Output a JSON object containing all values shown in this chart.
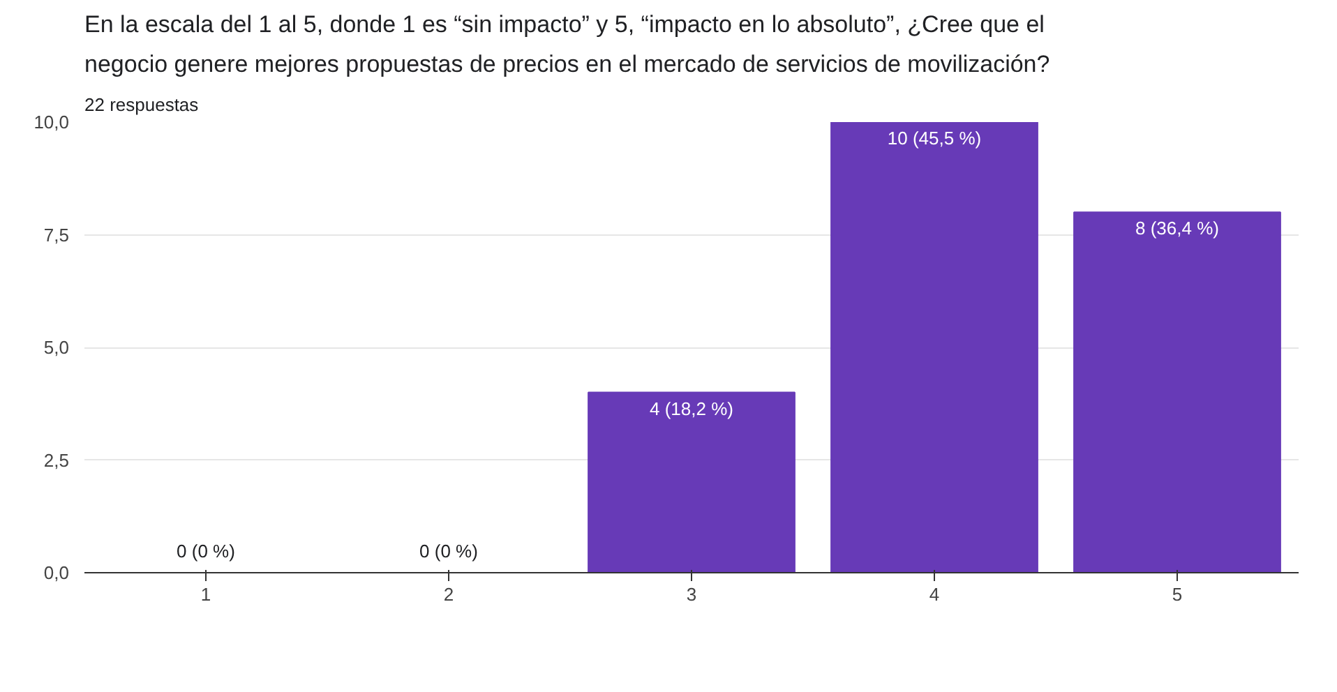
{
  "chart_data": {
    "type": "bar",
    "title": "En la escala del 1 al 5, donde 1 es “sin impacto” y 5, “impacto en lo absoluto”, ¿Cree que el negocio genere mejores propuestas de precios en el mercado de servicios de movilización?",
    "subtitle": "22 respuestas",
    "categories": [
      "1",
      "2",
      "3",
      "4",
      "5"
    ],
    "values": [
      0,
      0,
      4,
      10,
      8
    ],
    "value_labels": [
      "0 (0 %)",
      "0 (0 %)",
      "4 (18,2 %)",
      "10 (45,5 %)",
      "8 (36,4 %)"
    ],
    "color": "#673ab7",
    "ylim": [
      0,
      10
    ],
    "yticks": [
      {
        "value": 0,
        "label": "0,0"
      },
      {
        "value": 2.5,
        "label": "2,5"
      },
      {
        "value": 5,
        "label": "5,0"
      },
      {
        "value": 7.5,
        "label": "7,5"
      },
      {
        "value": 10,
        "label": "10,0"
      }
    ],
    "grid": "y"
  }
}
